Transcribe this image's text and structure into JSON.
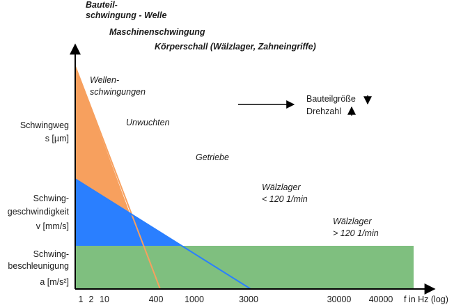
{
  "headings": {
    "line1": "Bauteil-",
    "line2": "schwingung - Welle",
    "line3": "Maschinenschwingung",
    "line4": "Körperschall (Wälzlager, Zahneingriffe)"
  },
  "y_labels": {
    "weg_1": "Schwingweg",
    "weg_2": "s [µm]",
    "gesch_1": "Schwing-",
    "gesch_2": "geschwindigkeit",
    "gesch_3": "v [mm/s]",
    "beschl_1": "Schwing-",
    "beschl_2": "beschleunigung",
    "beschl_3": "a [m/s²]"
  },
  "region_labels": {
    "wellen_1": "Wellen-",
    "wellen_2": "schwingungen",
    "unwuchten": "Unwuchten",
    "getriebe": "Getriebe",
    "wl_low_1": "Wälzlager",
    "wl_low_2": "< 120 1/min",
    "wl_high_1": "Wälzlager",
    "wl_high_2": "> 120 1/min"
  },
  "trend": {
    "size": "Bauteilgröße",
    "speed": "Drehzahl"
  },
  "x_axis": {
    "ticks": [
      "1",
      "2",
      "10",
      "400",
      "1000",
      "3000",
      "30000",
      "40000"
    ],
    "label": "f in Hz (log)"
  },
  "colors": {
    "displacement": "#f7a05e",
    "velocity": "#2a7fff",
    "acceleration": "#7fbf7f",
    "axis": "#000000"
  }
}
